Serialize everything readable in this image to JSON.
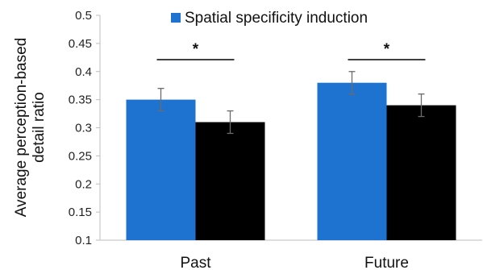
{
  "chart_data": {
    "type": "bar",
    "categories": [
      "Past",
      "Future"
    ],
    "series": [
      {
        "name": "Spatial specificity induction",
        "values": [
          0.35,
          0.38
        ],
        "errors": [
          0.02,
          0.02
        ],
        "color": "#1f73d0"
      },
      {
        "name": "",
        "values": [
          0.31,
          0.34
        ],
        "errors": [
          0.02,
          0.02
        ],
        "color": "#000000"
      }
    ],
    "ylabel_lines": [
      "Average perception-based",
      "detail ratio"
    ],
    "ylim": [
      0.1,
      0.5
    ],
    "yticks": [
      "0.1",
      "0.15",
      "0.2",
      "0.25",
      "0.3",
      "0.35",
      "0.4",
      "0.45",
      "0.5"
    ],
    "significance": [
      {
        "category": "Past",
        "label": "*"
      },
      {
        "category": "Future",
        "label": "*"
      }
    ],
    "legend": {
      "position": "top-right",
      "entries": [
        "Spatial specificity induction"
      ]
    },
    "grid": false
  }
}
